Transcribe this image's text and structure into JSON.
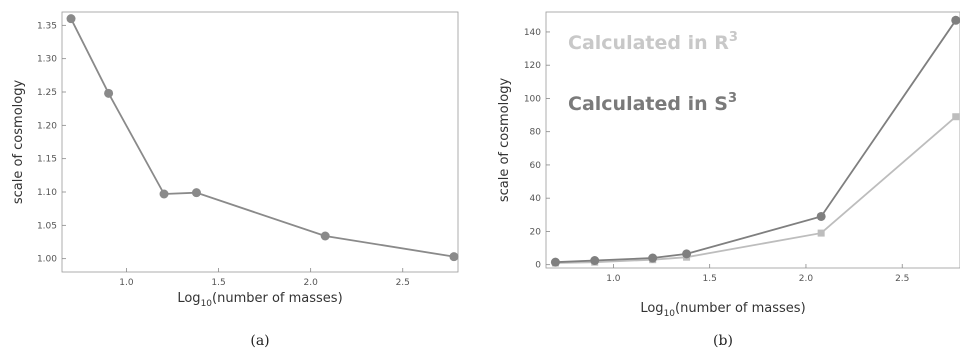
{
  "chart_data": [
    {
      "type": "line",
      "caption": "(a)",
      "xlabel": "Log",
      "xlabel_sub": "10",
      "xlabel_rest": "(number of masses)",
      "ylabel": "scale of cosmology",
      "xlim": [
        0.65,
        2.8
      ],
      "ylim": [
        0.98,
        1.37
      ],
      "xticks": [
        1.0,
        1.5,
        2.0,
        2.5
      ],
      "xtick_labels": [
        "1.0",
        "1.5",
        "2.0",
        "2.5"
      ],
      "yticks": [
        1.0,
        1.05,
        1.1,
        1.15,
        1.2,
        1.25,
        1.3,
        1.35
      ],
      "ytick_labels": [
        "1.00",
        "1.05",
        "1.10",
        "1.15",
        "1.20",
        "1.25",
        "1.30",
        "1.35"
      ],
      "grid": false,
      "series": [
        {
          "color": "#8a8a8a",
          "marker": "circle",
          "x": [
            0.699,
            0.903,
            1.204,
            1.38,
            2.079,
            2.778
          ],
          "y": [
            1.36,
            1.248,
            1.097,
            1.099,
            1.034,
            1.003
          ]
        }
      ]
    },
    {
      "type": "line",
      "caption": "(b)",
      "xlabel": "Log",
      "xlabel_sub": "10",
      "xlabel_rest": "(number of masses)",
      "ylabel": "scale of cosmology",
      "xlim": [
        0.65,
        2.8
      ],
      "ylim": [
        -2,
        152
      ],
      "xticks": [
        1.0,
        1.5,
        2.0,
        2.5
      ],
      "xtick_labels": [
        "1.0",
        "1.5",
        "2.0",
        "2.5"
      ],
      "yticks": [
        0,
        20,
        40,
        60,
        80,
        100,
        120,
        140
      ],
      "ytick_labels": [
        "0",
        "20",
        "40",
        "60",
        "80",
        "100",
        "120",
        "140"
      ],
      "grid": false,
      "legend": [
        {
          "text": "Calculated in R",
          "sup": "3",
          "color": "#c8c8c8"
        },
        {
          "text": "Calculated in S",
          "sup": "3",
          "color": "#7a7a7a"
        }
      ],
      "series": [
        {
          "name": "Calculated in R3",
          "color": "#bdbdbd",
          "marker": "square",
          "x": [
            0.699,
            0.903,
            1.204,
            1.38,
            2.079,
            2.778
          ],
          "y": [
            1,
            1.5,
            3,
            4.5,
            19,
            89
          ]
        },
        {
          "name": "Calculated in S3",
          "color": "#7f7f7f",
          "marker": "circle",
          "x": [
            0.699,
            0.903,
            1.204,
            1.38,
            2.079,
            2.778
          ],
          "y": [
            1.5,
            2.5,
            4,
            6.5,
            29,
            147
          ]
        }
      ]
    }
  ]
}
